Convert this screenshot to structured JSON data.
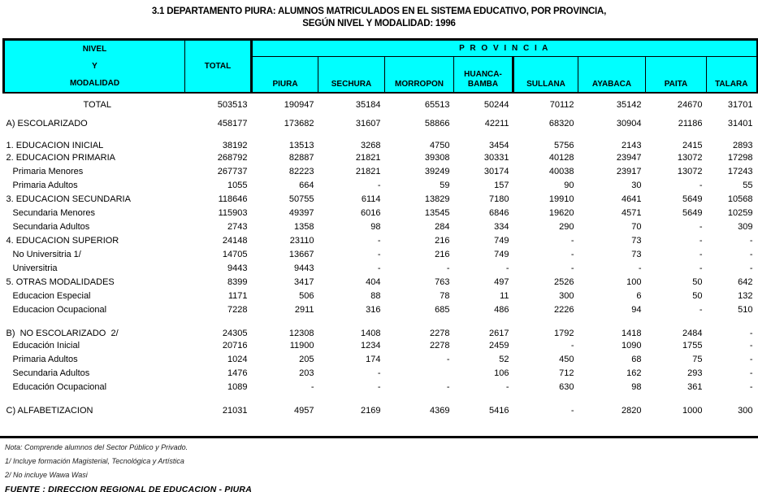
{
  "title": {
    "line1": "3.1  DEPARTAMENTO PIURA:  ALUMNOS MATRICULADOS EN EL SISTEMA EDUCATIVO, POR PROVINCIA,",
    "line2": "SEGÚN NIVEL Y MODALIDAD: 1996"
  },
  "colors": {
    "header_bg": "#00ffff",
    "border": "#000000",
    "text": "#000000"
  },
  "table": {
    "header": {
      "nivel": "NIVEL\nY\nMODALIDAD",
      "total": "TOTAL",
      "provincia": "P R O V I N C I A",
      "provinces": [
        "PIURA",
        "SECHURA",
        "MORROPON",
        "HUANCA-\nBAMBA",
        "SULLANA",
        "AYABACA",
        "PAITA",
        "TALARA"
      ]
    },
    "rows": [
      {
        "label": "TOTAL",
        "indent": "total",
        "gap": "g0",
        "values": [
          "503513",
          "190947",
          "35184",
          "65513",
          "50244",
          "70112",
          "35142",
          "24670",
          "31701"
        ]
      },
      {
        "label": "A) ESCOLARIZADO",
        "indent": "ind0",
        "gap": "g1",
        "values": [
          "458177",
          "173682",
          "31607",
          "58866",
          "42211",
          "68320",
          "30904",
          "21186",
          "31401"
        ]
      },
      {
        "label": "1. EDUCACION INICIAL",
        "indent": "ind0",
        "gap": "g2",
        "values": [
          "38192",
          "13513",
          "3268",
          "4750",
          "3454",
          "5756",
          "2143",
          "2415",
          "2893"
        ]
      },
      {
        "label": "2. EDUCACION PRIMARIA",
        "indent": "ind0",
        "gap": "",
        "values": [
          "268792",
          "82887",
          "21821",
          "39308",
          "30331",
          "40128",
          "23947",
          "13072",
          "17298"
        ]
      },
      {
        "label": "Primaria Menores",
        "indent": "ind1",
        "gap": "",
        "values": [
          "267737",
          "82223",
          "21821",
          "39249",
          "30174",
          "40038",
          "23917",
          "13072",
          "17243"
        ]
      },
      {
        "label": "Primaria Adultos",
        "indent": "ind1",
        "gap": "",
        "values": [
          "1055",
          "664",
          "-",
          "59",
          "157",
          "90",
          "30",
          "-",
          "55"
        ]
      },
      {
        "label": "3. EDUCACION SECUNDARIA",
        "indent": "ind0",
        "gap": "",
        "values": [
          "118646",
          "50755",
          "6114",
          "13829",
          "7180",
          "19910",
          "4641",
          "5649",
          "10568"
        ]
      },
      {
        "label": "Secundaria Menores",
        "indent": "ind1",
        "gap": "",
        "values": [
          "115903",
          "49397",
          "6016",
          "13545",
          "6846",
          "19620",
          "4571",
          "5649",
          "10259"
        ]
      },
      {
        "label": "Secundaria Adultos",
        "indent": "ind1",
        "gap": "",
        "values": [
          "2743",
          "1358",
          "98",
          "284",
          "334",
          "290",
          "70",
          "-",
          "309"
        ]
      },
      {
        "label": "4. EDUCACION SUPERIOR",
        "indent": "ind0",
        "gap": "",
        "values": [
          "24148",
          "23110",
          "-",
          "216",
          "749",
          "-",
          "73",
          "-",
          "-"
        ]
      },
      {
        "label": "No Universitria 1/",
        "indent": "ind1",
        "gap": "",
        "values": [
          "14705",
          "13667",
          "-",
          "216",
          "749",
          "-",
          "73",
          "-",
          "-"
        ]
      },
      {
        "label": "Universitria",
        "indent": "ind1",
        "gap": "",
        "values": [
          "9443",
          "9443",
          "-",
          "-",
          "-",
          "-",
          "-",
          "-",
          "-"
        ]
      },
      {
        "label": "5. OTRAS MODALIDADES",
        "indent": "ind0",
        "gap": "",
        "values": [
          "8399",
          "3417",
          "404",
          "763",
          "497",
          "2526",
          "100",
          "50",
          "642"
        ]
      },
      {
        "label": "Educacion Especial",
        "indent": "ind1",
        "gap": "",
        "values": [
          "1171",
          "506",
          "88",
          "78",
          "11",
          "300",
          "6",
          "50",
          "132"
        ]
      },
      {
        "label": "Educacion Ocupacional",
        "indent": "ind1",
        "gap": "",
        "values": [
          "7228",
          "2911",
          "316",
          "685",
          "486",
          "2226",
          "94",
          "-",
          "510"
        ]
      },
      {
        "label": "B)  NO ESCOLARIZADO  2/",
        "indent": "ind0",
        "gap": "g2",
        "values": [
          "24305",
          "12308",
          "1408",
          "2278",
          "2617",
          "1792",
          "1418",
          "2484",
          "-"
        ]
      },
      {
        "label": "Educación Inicial",
        "indent": "ind1",
        "gap": "",
        "values": [
          "20716",
          "11900",
          "1234",
          "2278",
          "2459",
          "-",
          "1090",
          "1755",
          "-"
        ]
      },
      {
        "label": "Primaria Adultos",
        "indent": "ind1",
        "gap": "",
        "values": [
          "1024",
          "205",
          "174",
          "-",
          "52",
          "450",
          "68",
          "75",
          "-"
        ]
      },
      {
        "label": "Secundaria Adultos",
        "indent": "ind1",
        "gap": "",
        "values": [
          "1476",
          "203",
          "-",
          "",
          "106",
          "712",
          "162",
          "293",
          "-"
        ]
      },
      {
        "label": "Educación Ocupacional",
        "indent": "ind1",
        "gap": "",
        "values": [
          "1089",
          "-",
          "-",
          "-",
          "-",
          "630",
          "98",
          "361",
          "-"
        ]
      },
      {
        "label": "C) ALFABETIZACION",
        "indent": "ind0",
        "gap": "g2",
        "values": [
          "21031",
          "4957",
          "2169",
          "4369",
          "5416",
          "-",
          "2820",
          "1000",
          "300"
        ]
      }
    ]
  },
  "footer": {
    "nota": "Nota: Comprende alumnos del Sector Público y Privado.",
    "note1": "1/ Incluye formación Magisterial, Tecnológica y Artística",
    "note2": "2/ No incluye Wawa Wasi",
    "fuente": "FUENTE : DIRECCION  REGIONAL DE EDUCACION - PIURA"
  }
}
